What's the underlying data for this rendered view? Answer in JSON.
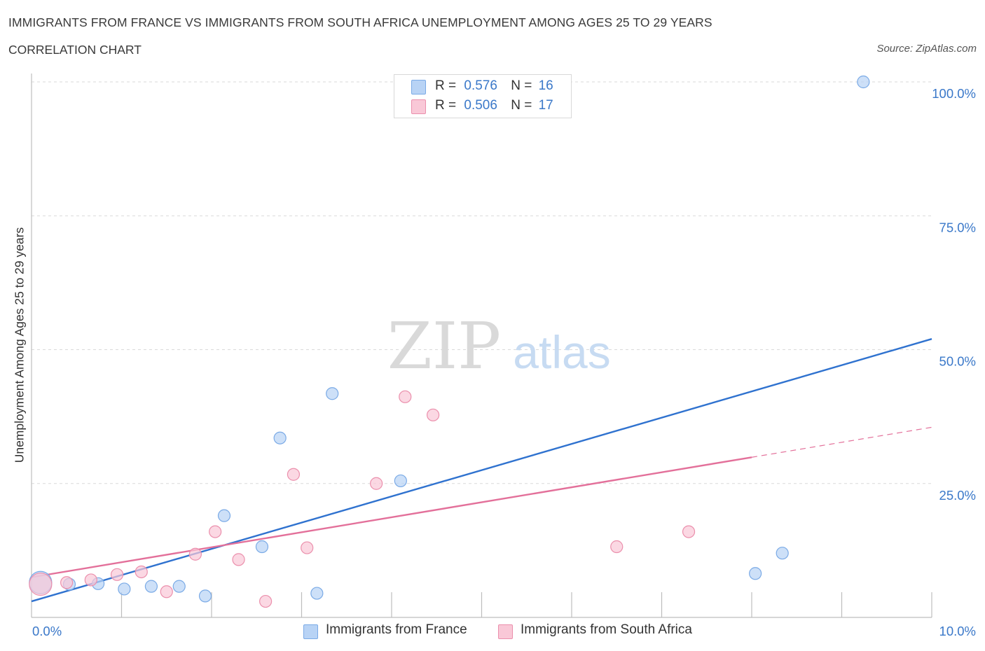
{
  "title": "IMMIGRANTS FROM FRANCE VS IMMIGRANTS FROM SOUTH AFRICA UNEMPLOYMENT AMONG AGES 25 TO 29 YEARS",
  "subtitle": "CORRELATION CHART",
  "source": "Source: ZipAtlas.com",
  "watermark": {
    "zip": "ZIP",
    "atlas": "atlas"
  },
  "legend": {
    "r_label": "R =",
    "n_label": "N =",
    "rows": [
      {
        "r": "0.576",
        "n": "16"
      },
      {
        "r": "0.506",
        "n": "17"
      }
    ]
  },
  "colors": {
    "france_fill": "#b8d3f5",
    "france_stroke": "#7aaae6",
    "france_line": "#2f72cf",
    "sa_fill": "#f9c8d7",
    "sa_stroke": "#eb8fac",
    "sa_line": "#e3709a",
    "axis_text": "#3a78c9",
    "grid": "#d9d9d9"
  },
  "chart_data": {
    "type": "scatter",
    "title": "IMMIGRANTS FROM FRANCE VS IMMIGRANTS FROM SOUTH AFRICA UNEMPLOYMENT AMONG AGES 25 TO 29 YEARS",
    "xlabel": "",
    "ylabel": "Unemployment Among Ages 25 to 29 years",
    "xlim": [
      0,
      10
    ],
    "ylim": [
      0,
      100
    ],
    "x_tick_labels": [
      "0.0%",
      "10.0%"
    ],
    "y_ticks": [
      25,
      50,
      75,
      100
    ],
    "y_tick_labels": [
      "25.0%",
      "50.0%",
      "75.0%",
      "100.0%"
    ],
    "grid": true,
    "series": [
      {
        "name": "Immigrants from France",
        "points": [
          {
            "x": 0.1,
            "y": 6.5,
            "big": true
          },
          {
            "x": 0.42,
            "y": 6.2
          },
          {
            "x": 0.74,
            "y": 6.3
          },
          {
            "x": 1.03,
            "y": 5.3
          },
          {
            "x": 1.33,
            "y": 5.8
          },
          {
            "x": 1.64,
            "y": 5.8
          },
          {
            "x": 1.93,
            "y": 4.0
          },
          {
            "x": 2.14,
            "y": 19.0
          },
          {
            "x": 2.56,
            "y": 13.2
          },
          {
            "x": 2.76,
            "y": 33.5
          },
          {
            "x": 3.17,
            "y": 4.5
          },
          {
            "x": 3.34,
            "y": 41.8
          },
          {
            "x": 4.1,
            "y": 25.5
          },
          {
            "x": 8.04,
            "y": 8.2
          },
          {
            "x": 8.34,
            "y": 12.0
          },
          {
            "x": 9.24,
            "y": 100.0
          }
        ],
        "trend": {
          "x": [
            0,
            10
          ],
          "y": [
            3.0,
            52.0
          ],
          "dashed_from": null
        }
      },
      {
        "name": "Immigrants from South Africa",
        "points": [
          {
            "x": 0.1,
            "y": 6.2,
            "big": true
          },
          {
            "x": 0.39,
            "y": 6.5
          },
          {
            "x": 0.66,
            "y": 7.0
          },
          {
            "x": 0.95,
            "y": 8.0
          },
          {
            "x": 1.22,
            "y": 8.5
          },
          {
            "x": 1.5,
            "y": 4.8
          },
          {
            "x": 1.82,
            "y": 11.8
          },
          {
            "x": 2.04,
            "y": 16.0
          },
          {
            "x": 2.3,
            "y": 10.8
          },
          {
            "x": 2.6,
            "y": 3.0
          },
          {
            "x": 2.91,
            "y": 26.7
          },
          {
            "x": 3.06,
            "y": 13.0
          },
          {
            "x": 3.83,
            "y": 25.0
          },
          {
            "x": 4.15,
            "y": 41.2
          },
          {
            "x": 4.46,
            "y": 37.8
          },
          {
            "x": 6.5,
            "y": 13.2
          },
          {
            "x": 7.3,
            "y": 16.0
          }
        ],
        "trend": {
          "x": [
            0,
            10
          ],
          "y": [
            7.5,
            35.5
          ],
          "dashed_from": 8.0
        }
      }
    ]
  }
}
